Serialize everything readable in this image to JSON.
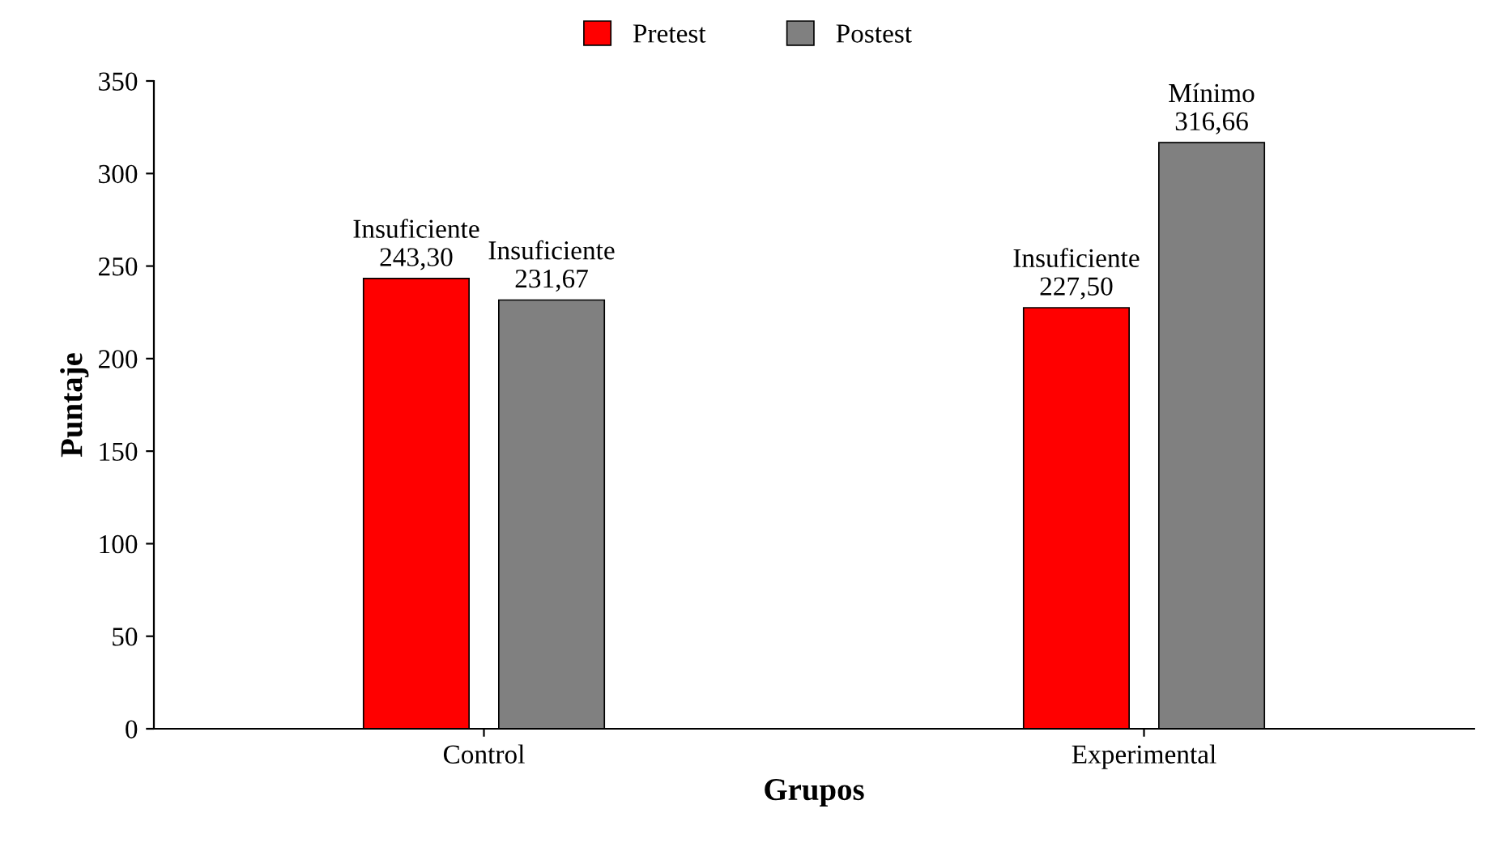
{
  "chart_data": {
    "type": "bar",
    "xlabel": "Grupos",
    "ylabel": "Puntaje",
    "categories": [
      "Control",
      "Experimental"
    ],
    "series": [
      {
        "name": "Pretest",
        "color": "#ff0000",
        "values": [
          243.3,
          227.5
        ],
        "value_labels": [
          "Insuficiente\n243,30",
          "Insuficiente\n227,50"
        ]
      },
      {
        "name": "Postest",
        "color": "#808080",
        "values": [
          231.67,
          316.66
        ],
        "value_labels": [
          "Insuficiente\n231,67",
          "Mínimo\n316,66"
        ]
      }
    ],
    "ylim": [
      0,
      350
    ],
    "yticks": [
      0,
      50,
      100,
      150,
      200,
      250,
      300,
      350
    ],
    "grid": false,
    "legend": "top"
  }
}
